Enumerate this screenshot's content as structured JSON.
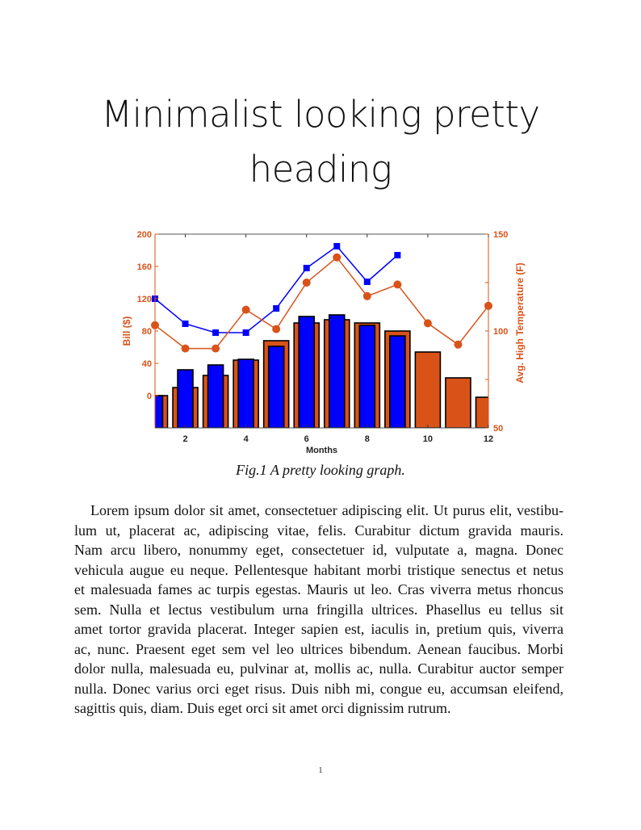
{
  "heading": {
    "lines": [
      "Minimalist looking pretty",
      "heading"
    ]
  },
  "figure": {
    "caption": "Fig.1 A pretty looking graph."
  },
  "chart_data": {
    "type": "bar+line",
    "xlabel": "Months",
    "ylabel_left": "Bill ($)",
    "ylabel_right": "Avg. High Temperature (F)",
    "xlim": [
      1,
      12
    ],
    "ylim_left": [
      -40,
      200
    ],
    "ylim_right": [
      50,
      150
    ],
    "xticks": [
      2,
      4,
      6,
      8,
      10,
      12
    ],
    "yticks_left": [
      0,
      40,
      80,
      120,
      160,
      200
    ],
    "yticks_right_labeled": [
      50,
      100,
      150
    ],
    "yticks_right": [
      50,
      75,
      100,
      125,
      150
    ],
    "x": [
      1,
      2,
      3,
      4,
      5,
      6,
      7,
      8,
      9,
      10,
      11,
      12
    ],
    "grid": false,
    "colors": {
      "orange": "#D95319",
      "blue": "#0000FF",
      "axis_left": "#D95319",
      "axis_right": "#D95319"
    },
    "series": [
      {
        "kind": "bar",
        "axis": "left",
        "color": "#D95319",
        "values": [
          0,
          10,
          25,
          44,
          68,
          90,
          94,
          90,
          80,
          54,
          22,
          -2
        ]
      },
      {
        "kind": "bar",
        "axis": "left",
        "color": "#0000FF",
        "values": [
          0,
          32,
          38,
          45,
          61,
          98,
          100,
          87,
          74,
          null,
          null,
          null
        ]
      },
      {
        "kind": "line",
        "marker": "square",
        "axis": "left",
        "color": "#0000FF",
        "values": [
          120,
          89,
          78,
          78,
          108,
          158,
          185,
          141,
          174,
          null,
          null,
          null
        ]
      },
      {
        "kind": "line",
        "marker": "circle",
        "axis": "right",
        "color": "#D95319",
        "values": [
          103,
          91,
          91,
          111,
          101,
          125,
          138,
          118,
          124,
          104,
          93,
          113
        ]
      }
    ]
  },
  "body": {
    "lines": [
      "Lorem ipsum dolor sit amet, consectetuer adipiscing elit. Ut purus elit, vestibu-",
      "lum ut, placerat ac, adipiscing vitae, felis. Curabitur dictum gravida mauris.",
      "Nam arcu libero, nonummy eget, consectetuer id, vulputate a, magna. Donec",
      "vehicula augue eu neque. Pellentesque habitant morbi tristique senectus et netus",
      "et malesuada fames ac turpis egestas. Mauris ut leo. Cras viverra metus rhoncus",
      "sem. Nulla et lectus vestibulum urna fringilla ultrices. Phasellus eu tellus sit",
      "amet tortor gravida placerat. Integer sapien est, iaculis in, pretium quis, viverra",
      "ac, nunc. Praesent eget sem vel leo ultrices bibendum. Aenean faucibus. Morbi",
      "dolor nulla, malesuada eu, pulvinar at, mollis ac, nulla. Curabitur auctor semper",
      "nulla. Donec varius orci eget risus. Duis nibh mi, congue eu, accumsan eleifend,",
      "sagittis quis, diam. Duis eget orci sit amet orci dignissim rutrum."
    ]
  },
  "footer": {
    "page_number": "1"
  }
}
